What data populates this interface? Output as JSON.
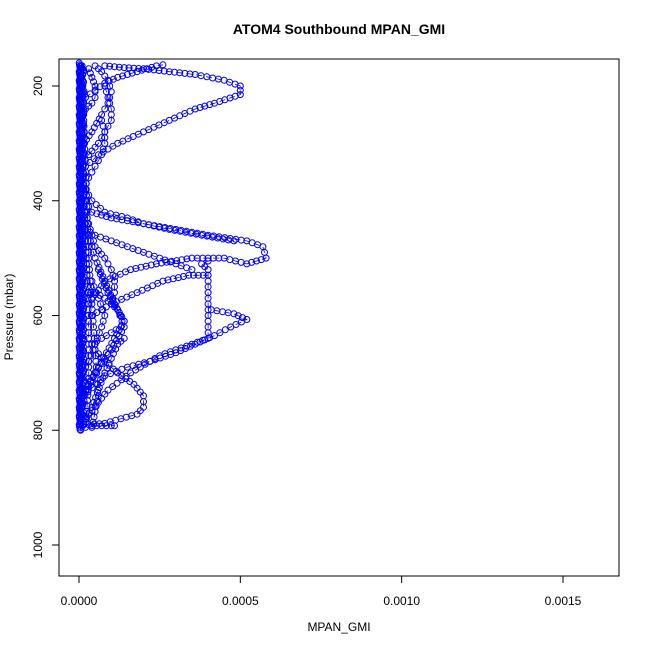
{
  "chart_data": {
    "type": "scatter",
    "title": "ATOM4 Southbound MPAN_GMI",
    "xlabel": "MPAN_GMI",
    "ylabel": "Pressure (mbar)",
    "xlim": [
      0,
      0.00165
    ],
    "ylim": [
      160,
      1050
    ],
    "y_reversed": true,
    "x_ticks": [
      0,
      0.0005,
      0.001,
      0.0015
    ],
    "x_tick_labels": [
      "0.0000",
      "0.0005",
      "0.0010",
      "0.0015"
    ],
    "y_ticks": [
      200,
      400,
      600,
      800,
      1000
    ],
    "y_tick_labels": [
      "200",
      "400",
      "600",
      "800",
      "1000"
    ],
    "marker": "open-circle",
    "color": "#0000ff",
    "legend": "none",
    "grid": false,
    "series": [
      {
        "segments": [
          [
            [
              5e-06,
              800
            ],
            [
              1e-05,
              700
            ],
            [
              1e-05,
              600
            ],
            [
              8e-06,
              500
            ],
            [
              6e-06,
              400
            ],
            [
              5e-06,
              300
            ],
            [
              4e-06,
              200
            ],
            [
              4e-06,
              165
            ]
          ],
          [
            [
              2e-05,
              795
            ],
            [
              3e-05,
              720
            ],
            [
              3e-05,
              620
            ],
            [
              2.5e-05,
              540
            ],
            [
              2e-05,
              460
            ],
            [
              1.5e-05,
              380
            ],
            [
              1e-05,
              300
            ],
            [
              8e-06,
              220
            ],
            [
              6e-06,
              165
            ]
          ],
          [
            [
              4e-05,
              795
            ],
            [
              6e-05,
              740
            ],
            [
              5e-05,
              660
            ],
            [
              4e-05,
              580
            ],
            [
              3e-05,
              500
            ],
            [
              2.5e-05,
              420
            ],
            [
              2e-05,
              340
            ],
            [
              1.5e-05,
              260
            ],
            [
              1e-05,
              170
            ]
          ],
          [
            [
              1.5e-05,
              790
            ],
            [
              4e-05,
              760
            ],
            [
              8e-05,
              700
            ],
            [
              0.00012,
              650
            ],
            [
              0.00014,
              640
            ]
          ],
          [
            [
              1.5e-05,
              740
            ],
            [
              5e-05,
              700
            ],
            [
              0.0001,
              660
            ],
            [
              0.00014,
              620
            ],
            [
              0.00012,
              590
            ],
            [
              9e-05,
              560
            ],
            [
              6e-05,
              520
            ]
          ],
          [
            [
              2e-05,
              730
            ],
            [
              6e-05,
              690
            ],
            [
              0.00011,
              640
            ],
            [
              0.00014,
              610
            ],
            [
              0.00011,
              580
            ],
            [
              8e-05,
              540
            ],
            [
              5e-05,
              500
            ],
            [
              3e-05,
              460
            ]
          ],
          [
            [
              4e-05,
              792
            ],
            [
              0.0001,
              792
            ],
            [
              0.00011,
              792
            ]
          ],
          [
            [
              3e-05,
              790
            ],
            [
              8e-05,
              788
            ],
            [
              0.00013,
              780
            ],
            [
              0.00018,
              772
            ],
            [
              0.0002,
              760
            ],
            [
              0.0002,
              740
            ],
            [
              0.00017,
              720
            ],
            [
              0.00012,
              700
            ],
            [
              8e-05,
              680
            ],
            [
              5e-05,
              660
            ]
          ],
          [
            [
              1.5e-05,
              740
            ],
            [
              8e-05,
              705
            ],
            [
              0.00015,
              690
            ],
            [
              0.00022,
              680
            ],
            [
              0.0003,
              665
            ],
            [
              0.00036,
              650
            ],
            [
              0.00042,
              635
            ],
            [
              0.00047,
              620
            ],
            [
              0.00052,
              607
            ],
            [
              0.00048,
              597
            ],
            [
              0.00041,
              590
            ]
          ],
          [
            [
              2e-05,
              780
            ],
            [
              9e-05,
              730
            ],
            [
              0.00016,
              700
            ],
            [
              0.00025,
              670
            ],
            [
              0.00035,
              650
            ],
            [
              0.0004,
              640
            ],
            [
              0.0004,
              610
            ],
            [
              0.0004,
              560
            ],
            [
              0.0004,
              520
            ],
            [
              0.00038,
              510
            ],
            [
              0.0004,
              505
            ]
          ],
          [
            [
              4e-05,
              600
            ],
            [
              0.0001,
              580
            ],
            [
              0.00018,
              560
            ],
            [
              0.00026,
              540
            ],
            [
              0.00034,
              530
            ],
            [
              0.0004,
              530
            ]
          ],
          [
            [
              3e-05,
              580
            ],
            [
              8e-05,
              540
            ],
            [
              0.00016,
              520
            ],
            [
              0.00024,
              510
            ],
            [
              0.00035,
              500
            ],
            [
              0.00045,
              500
            ],
            [
              0.00052,
              510
            ],
            [
              0.00058,
              500
            ],
            [
              0.00057,
              480
            ],
            [
              0.00052,
              470
            ],
            [
              0.0004,
              460
            ],
            [
              0.0003,
              450
            ],
            [
              0.0002,
              440
            ],
            [
              0.0001,
              430
            ],
            [
              4e-05,
              420
            ],
            [
              2e-05,
              400
            ]
          ],
          [
            [
              2e-05,
              380
            ],
            [
              4e-05,
              400
            ],
            [
              8e-05,
              420
            ],
            [
              0.00015,
              430
            ],
            [
              0.0002,
              440
            ],
            [
              0.00028,
              450
            ],
            [
              0.00038,
              460
            ],
            [
              0.00048,
              470
            ]
          ],
          [
            [
              2e-05,
              450
            ],
            [
              5e-05,
              460
            ],
            [
              0.0001,
              470
            ],
            [
              0.00015,
              480
            ],
            [
              0.0002,
              490
            ],
            [
              0.00025,
              500
            ],
            [
              0.0003,
              510
            ],
            [
              0.00035,
              520
            ]
          ],
          [
            [
              2e-05,
              340
            ],
            [
              6e-05,
              320
            ],
            [
              0.00012,
              300
            ],
            [
              0.0002,
              280
            ],
            [
              0.00028,
              260
            ],
            [
              0.00036,
              240
            ],
            [
              0.00042,
              230
            ],
            [
              0.0005,
              215
            ],
            [
              0.0005,
              200
            ],
            [
              0.00045,
              190
            ],
            [
              0.00036,
              180
            ],
            [
              0.00028,
              175
            ],
            [
              0.0002,
              170
            ],
            [
              0.00014,
              168
            ],
            [
              8e-05,
              165
            ]
          ],
          [
            [
              3e-05,
              320
            ],
            [
              6e-05,
              300
            ],
            [
              8e-05,
              280
            ],
            [
              0.0001,
              260
            ],
            [
              0.0001,
              240
            ],
            [
              9e-05,
              220
            ],
            [
              8e-05,
              200
            ]
          ],
          [
            [
              2e-05,
              220
            ],
            [
              8e-05,
              195
            ],
            [
              0.00012,
              185
            ],
            [
              0.00018,
              175
            ],
            [
              0.00024,
              165
            ],
            [
              0.00026,
              163
            ]
          ],
          [
            [
              1.5e-05,
              300
            ],
            [
              4e-05,
              280
            ],
            [
              7e-05,
              250
            ],
            [
              9e-05,
              230
            ],
            [
              0.0001,
              210
            ],
            [
              9e-05,
              190
            ],
            [
              7e-05,
              175
            ],
            [
              5e-05,
              165
            ]
          ],
          [
            [
              1.5e-05,
              380
            ],
            [
              3e-05,
              360
            ],
            [
              5e-05,
              340
            ],
            [
              7e-05,
              320
            ],
            [
              8e-05,
              300
            ],
            [
              8e-05,
              280
            ],
            [
              7e-05,
              260
            ]
          ],
          [
            [
              2e-05,
              420
            ],
            [
              3e-05,
              440
            ],
            [
              5e-05,
              480
            ],
            [
              8e-05,
              500
            ],
            [
              0.0001,
              520
            ],
            [
              0.00011,
              540
            ],
            [
              0.00011,
              560
            ],
            [
              0.0001,
              580
            ]
          ],
          [
            [
              3e-05,
              560
            ],
            [
              5e-05,
              560
            ],
            [
              8e-05,
              570
            ],
            [
              0.0001,
              580
            ],
            [
              0.00012,
              590
            ],
            [
              0.00013,
              600
            ],
            [
              0.00014,
              610
            ],
            [
              0.00013,
              620
            ],
            [
              0.0001,
              630
            ],
            [
              7e-05,
              640
            ],
            [
              4e-05,
              650
            ]
          ],
          [
            [
              1e-05,
              250
            ],
            [
              2e-05,
              240
            ],
            [
              4e-05,
              230
            ],
            [
              5e-05,
              220
            ],
            [
              5e-05,
              200
            ],
            [
              4e-05,
              185
            ],
            [
              3e-05,
              170
            ]
          ],
          [
            [
              1e-05,
              700
            ],
            [
              3e-05,
              680
            ],
            [
              5e-05,
              650
            ],
            [
              7e-05,
              620
            ],
            [
              8e-05,
              600
            ],
            [
              6e-05,
              570
            ],
            [
              4e-05,
              540
            ]
          ]
        ]
      }
    ]
  }
}
